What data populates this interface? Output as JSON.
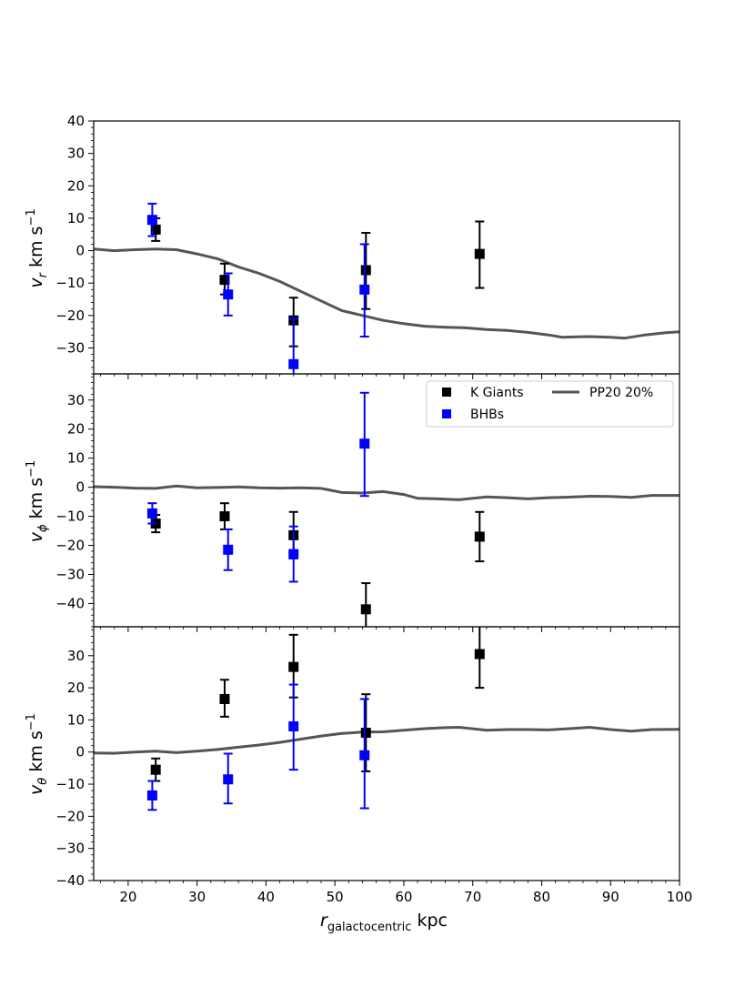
{
  "chart_data": {
    "type": "scatter",
    "xlabel_main": "r",
    "xlabel_sub": "galactocentric",
    "xlabel_unit": " kpc",
    "xlim": [
      15,
      100
    ],
    "xticks": [
      20,
      30,
      40,
      50,
      60,
      70,
      80,
      90,
      100
    ],
    "legend": {
      "location": "upper-right of middle panel",
      "entries": [
        "K Giants",
        "BHBs",
        "PP20 20%"
      ]
    },
    "colors": {
      "kgiants": "#000000",
      "bhbs": "#0000ff",
      "model": "#555555"
    },
    "panels": [
      {
        "id": "vr",
        "ylabel_main": "v",
        "ylabel_sub": "r",
        "ylabel_unit": " km s",
        "ylabel_exp": "−1",
        "ylim": [
          -38,
          40
        ],
        "yticks": [
          -30,
          -20,
          -10,
          0,
          10,
          20,
          30,
          40
        ],
        "ytick_labels": [
          "−30",
          "−20",
          "−10",
          "0",
          "10",
          "20",
          "30",
          "40"
        ],
        "kgiants": [
          {
            "x": 24.0,
            "y": 6.5,
            "lo": 3.0,
            "hi": 10.0
          },
          {
            "x": 34.0,
            "y": -9.0,
            "lo": -13.5,
            "hi": -4.0
          },
          {
            "x": 44.0,
            "y": -21.5,
            "lo": -29.5,
            "hi": -14.5
          },
          {
            "x": 54.5,
            "y": -6.0,
            "lo": -18.0,
            "hi": 5.5
          },
          {
            "x": 71.0,
            "y": -1.0,
            "lo": -11.5,
            "hi": 9.0
          }
        ],
        "bhbs": [
          {
            "x": 23.5,
            "y": 9.5,
            "lo": 4.5,
            "hi": 14.5
          },
          {
            "x": 34.5,
            "y": -13.5,
            "lo": -20.0,
            "hi": -7.0
          },
          {
            "x": 44.0,
            "y": -35.0,
            "lo": -41.0,
            "hi": -21.0
          },
          {
            "x": 54.3,
            "y": -12.0,
            "lo": -26.5,
            "hi": 2.0
          }
        ],
        "model": [
          [
            15,
            0.5
          ],
          [
            18,
            0.0
          ],
          [
            21,
            0.3
          ],
          [
            24,
            0.5
          ],
          [
            27,
            0.3
          ],
          [
            30,
            -1.0
          ],
          [
            33,
            -2.5
          ],
          [
            36,
            -5.0
          ],
          [
            39,
            -7.0
          ],
          [
            42,
            -9.5
          ],
          [
            45,
            -12.5
          ],
          [
            48,
            -15.5
          ],
          [
            51,
            -18.5
          ],
          [
            54,
            -20.0
          ],
          [
            57,
            -21.5
          ],
          [
            60,
            -22.5
          ],
          [
            63,
            -23.3
          ],
          [
            66,
            -23.6
          ],
          [
            69,
            -23.8
          ],
          [
            72,
            -24.3
          ],
          [
            75,
            -24.6
          ],
          [
            78,
            -25.2
          ],
          [
            81,
            -26.0
          ],
          [
            83,
            -26.7
          ],
          [
            87,
            -26.5
          ],
          [
            90,
            -26.7
          ],
          [
            92,
            -27.0
          ],
          [
            95,
            -26.0
          ],
          [
            98,
            -25.3
          ],
          [
            100,
            -25.0
          ]
        ]
      },
      {
        "id": "vphi",
        "ylabel_main": "v",
        "ylabel_sub": "ϕ",
        "ylabel_unit": " km s",
        "ylabel_exp": "−1",
        "ylim": [
          -48,
          39
        ],
        "yticks": [
          -40,
          -30,
          -20,
          -10,
          0,
          10,
          20,
          30
        ],
        "ytick_labels": [
          "−40",
          "−30",
          "−20",
          "−10",
          "0",
          "10",
          "20",
          "30"
        ],
        "kgiants": [
          {
            "x": 24.0,
            "y": -12.5,
            "lo": -15.5,
            "hi": -9.5
          },
          {
            "x": 34.0,
            "y": -10.0,
            "lo": -14.5,
            "hi": -5.5
          },
          {
            "x": 44.0,
            "y": -16.5,
            "lo": -24.5,
            "hi": -8.5
          },
          {
            "x": 54.5,
            "y": -42.0,
            "lo": -51.0,
            "hi": -33.0
          },
          {
            "x": 71.0,
            "y": -17.0,
            "lo": -25.5,
            "hi": -8.5
          }
        ],
        "bhbs": [
          {
            "x": 23.5,
            "y": -9.0,
            "lo": -12.5,
            "hi": -5.5
          },
          {
            "x": 34.5,
            "y": -21.5,
            "lo": -28.5,
            "hi": -14.5
          },
          {
            "x": 44.0,
            "y": -23.0,
            "lo": -32.5,
            "hi": -13.5
          },
          {
            "x": 54.3,
            "y": 15.0,
            "lo": -3.0,
            "hi": 32.5
          }
        ],
        "model": [
          [
            15,
            0.2
          ],
          [
            18,
            0.0
          ],
          [
            21,
            -0.3
          ],
          [
            24,
            -0.4
          ],
          [
            27,
            0.4
          ],
          [
            30,
            -0.2
          ],
          [
            33,
            -0.1
          ],
          [
            36,
            0.1
          ],
          [
            39,
            -0.2
          ],
          [
            42,
            -0.3
          ],
          [
            45,
            -0.2
          ],
          [
            48,
            -0.4
          ],
          [
            51,
            -1.8
          ],
          [
            54,
            -2.0
          ],
          [
            57,
            -1.5
          ],
          [
            60,
            -2.5
          ],
          [
            62,
            -3.8
          ],
          [
            65,
            -4.0
          ],
          [
            68,
            -4.3
          ],
          [
            72,
            -3.3
          ],
          [
            75,
            -3.6
          ],
          [
            78,
            -4.0
          ],
          [
            81,
            -3.6
          ],
          [
            84,
            -3.4
          ],
          [
            87,
            -3.1
          ],
          [
            90,
            -3.2
          ],
          [
            93,
            -3.5
          ],
          [
            96,
            -2.8
          ],
          [
            100,
            -2.8
          ]
        ]
      },
      {
        "id": "vtheta",
        "ylabel_main": "v",
        "ylabel_sub": "θ",
        "ylabel_unit": " km s",
        "ylabel_exp": "−1",
        "ylim": [
          -40,
          39
        ],
        "yticks": [
          -40,
          -30,
          -20,
          -10,
          0,
          10,
          20,
          30
        ],
        "ytick_labels": [
          "−40",
          "−30",
          "−20",
          "−10",
          "0",
          "10",
          "20",
          "30"
        ],
        "kgiants": [
          {
            "x": 24.0,
            "y": -5.5,
            "lo": -9.0,
            "hi": -2.0
          },
          {
            "x": 34.0,
            "y": 16.5,
            "lo": 11.0,
            "hi": 22.5
          },
          {
            "x": 44.0,
            "y": 26.5,
            "lo": 17.0,
            "hi": 36.5
          },
          {
            "x": 54.5,
            "y": 6.0,
            "lo": -6.0,
            "hi": 18.0
          },
          {
            "x": 71.0,
            "y": 30.5,
            "lo": 20.0,
            "hi": 40.0
          }
        ],
        "bhbs": [
          {
            "x": 23.5,
            "y": -13.5,
            "lo": -18.0,
            "hi": -9.0
          },
          {
            "x": 34.5,
            "y": -8.5,
            "lo": -16.0,
            "hi": -0.5
          },
          {
            "x": 44.0,
            "y": 8.0,
            "lo": -5.5,
            "hi": 21.0
          },
          {
            "x": 54.3,
            "y": -1.0,
            "lo": -17.5,
            "hi": 16.5
          }
        ],
        "model": [
          [
            15,
            -0.3
          ],
          [
            18,
            -0.4
          ],
          [
            21,
            0.0
          ],
          [
            24,
            0.3
          ],
          [
            27,
            -0.2
          ],
          [
            30,
            0.3
          ],
          [
            33,
            0.8
          ],
          [
            36,
            1.5
          ],
          [
            39,
            2.2
          ],
          [
            42,
            3.0
          ],
          [
            45,
            4.0
          ],
          [
            48,
            5.0
          ],
          [
            51,
            5.8
          ],
          [
            54,
            6.2
          ],
          [
            57,
            6.3
          ],
          [
            60,
            6.8
          ],
          [
            63,
            7.3
          ],
          [
            66,
            7.6
          ],
          [
            68,
            7.7
          ],
          [
            72,
            6.8
          ],
          [
            75,
            7.0
          ],
          [
            78,
            7.0
          ],
          [
            81,
            6.9
          ],
          [
            84,
            7.3
          ],
          [
            87,
            7.7
          ],
          [
            90,
            7.0
          ],
          [
            93,
            6.5
          ],
          [
            96,
            7.0
          ],
          [
            100,
            7.1
          ]
        ]
      }
    ]
  }
}
